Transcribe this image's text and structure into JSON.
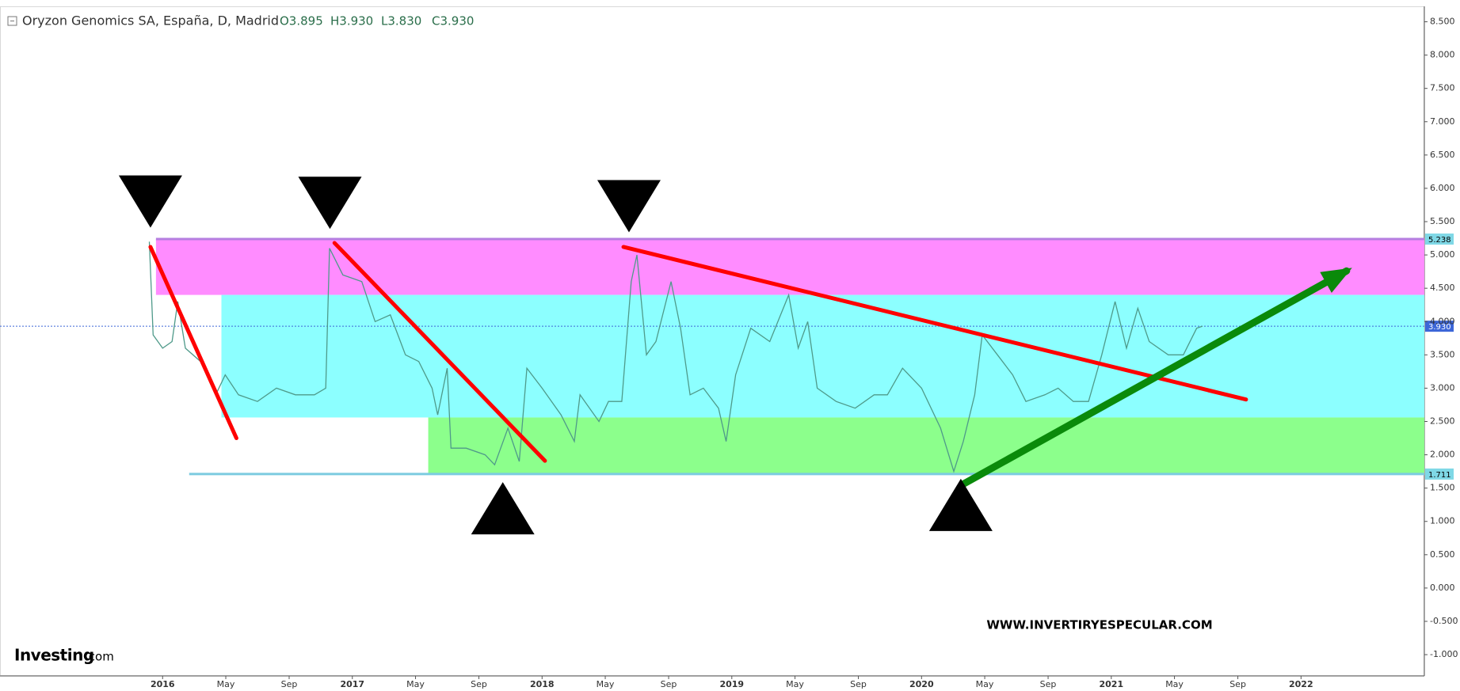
{
  "chart_data": {
    "type": "line",
    "title": "Oryzon Genomics SA, España, D, Madrid",
    "ohlc": [
      "O3.895",
      "H3.930",
      "L3.830",
      "C3.930"
    ],
    "watermark": "WWW.INVERTIRYESPECULAR.COM",
    "logo": {
      "brand": "Investing",
      "suffix": ".com"
    },
    "xlim": [
      2015.143,
      2022.65
    ],
    "ylim": [
      -1.32,
      8.72
    ],
    "grid": false,
    "xticks": [
      {
        "value": 2016.0,
        "label": "2016"
      },
      {
        "value": 2016.333,
        "label": "May"
      },
      {
        "value": 2016.667,
        "label": "Sep"
      },
      {
        "value": 2017.0,
        "label": "2017"
      },
      {
        "value": 2017.333,
        "label": "May"
      },
      {
        "value": 2017.667,
        "label": "Sep"
      },
      {
        "value": 2018.0,
        "label": "2018"
      },
      {
        "value": 2018.333,
        "label": "May"
      },
      {
        "value": 2018.667,
        "label": "Sep"
      },
      {
        "value": 2019.0,
        "label": "2019"
      },
      {
        "value": 2019.333,
        "label": "May"
      },
      {
        "value": 2019.667,
        "label": "Sep"
      },
      {
        "value": 2020.0,
        "label": "2020"
      },
      {
        "value": 2020.333,
        "label": "May"
      },
      {
        "value": 2020.667,
        "label": "Sep"
      },
      {
        "value": 2021.0,
        "label": "2021"
      },
      {
        "value": 2021.333,
        "label": "May"
      },
      {
        "value": 2021.667,
        "label": "Sep"
      },
      {
        "value": 2022.0,
        "label": "2022"
      }
    ],
    "yticks": [
      {
        "value": 8.5,
        "label": "8.500"
      },
      {
        "value": 8,
        "label": "8.000"
      },
      {
        "value": 7.5,
        "label": "7.500"
      },
      {
        "value": 7,
        "label": "7.000"
      },
      {
        "value": 6.5,
        "label": "6.500"
      },
      {
        "value": 6,
        "label": "6.000"
      },
      {
        "value": 5.5,
        "label": "5.500"
      },
      {
        "value": 5,
        "label": "5.000"
      },
      {
        "value": 4.5,
        "label": "4.500"
      },
      {
        "value": 4,
        "label": "4.000"
      },
      {
        "value": 3.5,
        "label": "3.500"
      },
      {
        "value": 3,
        "label": "3.000"
      },
      {
        "value": 2.5,
        "label": "2.500"
      },
      {
        "value": 2,
        "label": "2.000"
      },
      {
        "value": 1.5,
        "label": "1.500"
      },
      {
        "value": 1,
        "label": "1.000"
      },
      {
        "value": 0.5,
        "label": "0.500"
      },
      {
        "value": 0,
        "label": "0.000"
      },
      {
        "value": -0.5,
        "label": "-0.500"
      },
      {
        "value": -1,
        "label": "-1.000"
      }
    ],
    "zones": [
      {
        "y0": 4.4,
        "y1": 5.238,
        "x0": 2015.965,
        "color": "#ff8cff"
      },
      {
        "y0": 2.56,
        "y1": 4.4,
        "x0": 2016.31,
        "color": "#8cffff"
      },
      {
        "y0": 1.711,
        "y1": 2.56,
        "x0": 2017.4,
        "color": "#8cff8c"
      }
    ],
    "levels": [
      {
        "value": 5.238,
        "label": "5.238",
        "from": 2015.965,
        "color": "#b57ee0",
        "label_bg": "#7fd8e6",
        "label_fg": "#000000",
        "dashed": false
      },
      {
        "value": 3.93,
        "label": "3.930",
        "from": 2015.143,
        "color": "#3c66d8",
        "label_bg": "#3c66d8",
        "label_fg": "#ffffff",
        "dashed": true
      },
      {
        "value": 1.711,
        "label": "1.711",
        "from": 2016.14,
        "color": "#7ccbe0",
        "label_bg": "#7fd8e6",
        "label_fg": "#000000",
        "dashed": false
      }
    ],
    "trendlines": [
      {
        "x0": 2015.936,
        "y0": 5.12,
        "x1": 2016.389,
        "y1": 2.25,
        "color": "#ff0000",
        "arrow": false
      },
      {
        "x0": 2016.906,
        "y0": 5.18,
        "x1": 2018.015,
        "y1": 1.91,
        "color": "#ff0000",
        "arrow": false
      },
      {
        "x0": 2018.429,
        "y0": 5.12,
        "x1": 2021.71,
        "y1": 2.83,
        "color": "#ff0000",
        "arrow": false
      },
      {
        "x0": 2020.22,
        "y0": 1.56,
        "x1": 2022.24,
        "y1": 4.76,
        "color": "#0a8a0a",
        "arrow": true
      }
    ],
    "markers": [
      {
        "x": 2015.936,
        "y": 5.41,
        "direction": "down"
      },
      {
        "x": 2016.882,
        "y": 5.39,
        "direction": "down"
      },
      {
        "x": 2018.458,
        "y": 5.34,
        "direction": "down"
      },
      {
        "x": 2017.793,
        "y": 1.59,
        "direction": "up"
      },
      {
        "x": 2020.207,
        "y": 1.64,
        "direction": "up"
      }
    ],
    "series": [
      {
        "name": "Oryzon Genomics SA",
        "color": "#4f9a8a",
        "x": [
          2015.93,
          2015.95,
          2016.0,
          2016.05,
          2016.08,
          2016.12,
          2016.2,
          2016.28,
          2016.33,
          2016.4,
          2016.5,
          2016.6,
          2016.7,
          2016.8,
          2016.86,
          2016.88,
          2016.95,
          2017.05,
          2017.12,
          2017.2,
          2017.28,
          2017.35,
          2017.42,
          2017.45,
          2017.5,
          2017.52,
          2017.6,
          2017.7,
          2017.75,
          2017.82,
          2017.88,
          2017.92,
          2018.0,
          2018.1,
          2018.17,
          2018.2,
          2018.3,
          2018.35,
          2018.42,
          2018.47,
          2018.5,
          2018.55,
          2018.6,
          2018.68,
          2018.73,
          2018.78,
          2018.85,
          2018.93,
          2018.97,
          2019.02,
          2019.1,
          2019.2,
          2019.3,
          2019.35,
          2019.4,
          2019.45,
          2019.55,
          2019.65,
          2019.75,
          2019.82,
          2019.9,
          2020.0,
          2020.1,
          2020.17,
          2020.22,
          2020.28,
          2020.32,
          2020.4,
          2020.48,
          2020.55,
          2020.65,
          2020.72,
          2020.8,
          2020.88,
          2020.95,
          2021.02,
          2021.08,
          2021.14,
          2021.2,
          2021.3,
          2021.38,
          2021.45,
          2021.48
        ],
        "values": [
          5.2,
          3.8,
          3.6,
          3.7,
          4.3,
          3.6,
          3.4,
          2.9,
          3.2,
          2.9,
          2.8,
          3.0,
          2.9,
          2.9,
          3.0,
          5.1,
          4.7,
          4.6,
          4.0,
          4.1,
          3.5,
          3.4,
          3.0,
          2.6,
          3.3,
          2.1,
          2.1,
          2.0,
          1.85,
          2.4,
          1.9,
          3.3,
          3.0,
          2.6,
          2.2,
          2.9,
          2.5,
          2.8,
          2.8,
          4.6,
          5.0,
          3.5,
          3.7,
          4.6,
          3.9,
          2.9,
          3.0,
          2.7,
          2.2,
          3.2,
          3.9,
          3.7,
          4.4,
          3.6,
          4.0,
          3.0,
          2.8,
          2.7,
          2.9,
          2.9,
          3.3,
          3.0,
          2.4,
          1.75,
          2.2,
          2.9,
          3.8,
          3.5,
          3.2,
          2.8,
          2.9,
          3.0,
          2.8,
          2.8,
          3.5,
          4.3,
          3.6,
          4.2,
          3.7,
          3.5,
          3.5,
          3.9,
          3.93
        ]
      }
    ]
  }
}
